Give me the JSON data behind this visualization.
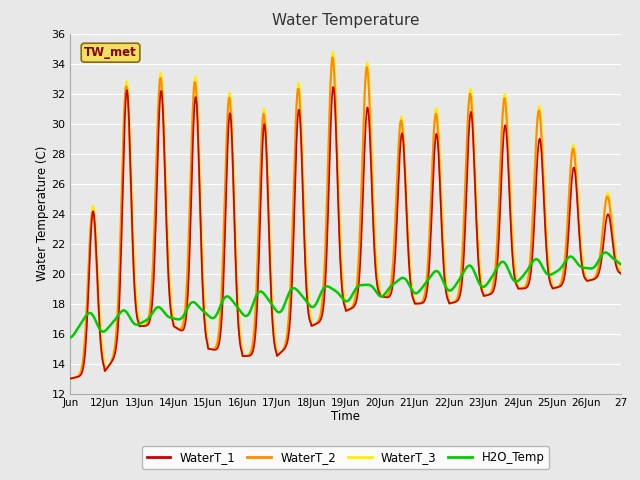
{
  "title": "Water Temperature",
  "xlabel": "Time",
  "ylabel": "Water Temperature (C)",
  "ylim": [
    12,
    36
  ],
  "yticks": [
    12,
    14,
    16,
    18,
    20,
    22,
    24,
    26,
    28,
    30,
    32,
    34,
    36
  ],
  "plot_bg_color": "#e8e8e8",
  "fig_bg_color": "#e8e8e8",
  "grid_color": "#ffffff",
  "annotation_text": "TW_met",
  "annotation_bg": "#f0e060",
  "annotation_fg": "#8b0000",
  "annotation_border": "#8b6914",
  "line_colors": {
    "WaterT_1": "#cc0000",
    "WaterT_2": "#ff8c00",
    "WaterT_3": "#ffee00",
    "H2O_Temp": "#00cc00"
  },
  "line_widths": {
    "WaterT_1": 1.2,
    "WaterT_2": 1.5,
    "WaterT_3": 1.5,
    "H2O_Temp": 1.8
  },
  "x_start_day": 11,
  "x_end_day": 27,
  "xtick_days": [
    11,
    12,
    13,
    14,
    15,
    16,
    17,
    18,
    19,
    20,
    21,
    22,
    23,
    24,
    25,
    26,
    27
  ],
  "xtick_labels": [
    "Jun",
    "12Jun",
    "13Jun",
    "14Jun",
    "15Jun",
    "16Jun",
    "17Jun",
    "18Jun",
    "19Jun",
    "20Jun",
    "21Jun",
    "22Jun",
    "23Jun",
    "24Jun",
    "25Jun",
    "26Jun",
    "27"
  ]
}
